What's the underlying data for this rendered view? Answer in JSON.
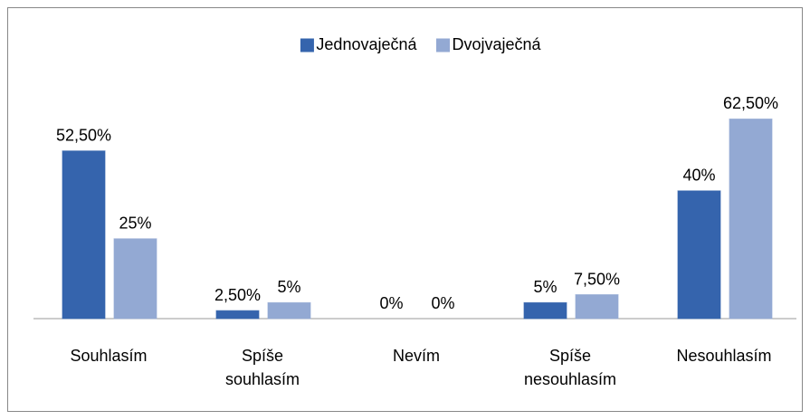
{
  "chart_data": {
    "type": "bar",
    "categories": [
      "Souhlasím",
      "Spíše souhlasím",
      "Nevím",
      "Spíše nesouhlasím",
      "Nesouhlasím"
    ],
    "series": [
      {
        "name": "Jednovaječná",
        "color": "#3564ad",
        "values": [
          52.5,
          2.5,
          0,
          5,
          40
        ],
        "value_labels": [
          "52,50%",
          "2,50%",
          "0%",
          "5%",
          "40%"
        ]
      },
      {
        "name": "Dvojvaječná",
        "color": "#93a9d3",
        "values": [
          25,
          5,
          0,
          7.5,
          62.5
        ],
        "value_labels": [
          "25%",
          "5%",
          "0%",
          "7,50%",
          "62,50%"
        ]
      }
    ],
    "ylim": [
      0,
      70
    ],
    "legend": "top"
  }
}
